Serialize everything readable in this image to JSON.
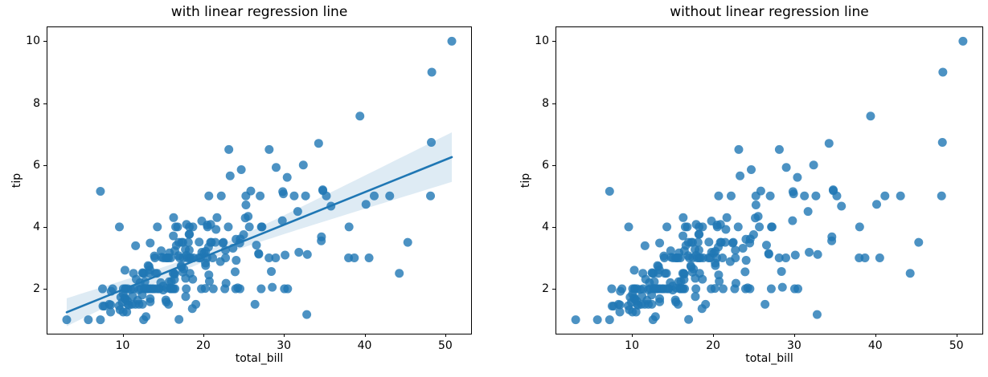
{
  "figure": {
    "background": "#ffffff"
  },
  "chart_data": {
    "type": "scatter",
    "x_field": "total_bill",
    "y_field": "tip",
    "xlim": [
      0.68,
      53.2
    ],
    "ylim": [
      0.55,
      10.45
    ],
    "x_ticks": [
      10,
      20,
      30,
      40,
      50
    ],
    "y_ticks": [
      2,
      4,
      6,
      8,
      10
    ],
    "grid": false,
    "legend": "none",
    "colors": {
      "point": "#1f77b4",
      "point_alpha": 0.8,
      "regression_line": "#1f77b4",
      "ci_band": "#1f77b4",
      "ci_band_alpha": 0.15,
      "axis": "#000000",
      "text": "#000000"
    },
    "subplots": [
      {
        "title": "with linear regression line",
        "xlabel": "total_bill",
        "ylabel": "tip",
        "regression_line": true,
        "regression": {
          "slope": 0.105,
          "intercept": 0.92,
          "x_start": 3.07,
          "x_end": 50.81,
          "ci_base": 0.026,
          "ci_quad": 0.00064,
          "x_mean": 19.79
        }
      },
      {
        "title": "without linear regression line",
        "xlabel": "total_bill",
        "ylabel": "tip",
        "regression_line": false
      }
    ],
    "points": [
      [
        16.99,
        1.01
      ],
      [
        10.34,
        1.66
      ],
      [
        21.01,
        3.5
      ],
      [
        23.68,
        3.31
      ],
      [
        24.59,
        3.61
      ],
      [
        25.29,
        4.71
      ],
      [
        8.77,
        2.0
      ],
      [
        26.88,
        3.12
      ],
      [
        15.04,
        1.96
      ],
      [
        14.78,
        3.23
      ],
      [
        10.27,
        1.71
      ],
      [
        35.26,
        5.0
      ],
      [
        15.42,
        1.57
      ],
      [
        18.43,
        3.0
      ],
      [
        14.83,
        3.02
      ],
      [
        21.58,
        3.92
      ],
      [
        10.33,
        1.67
      ],
      [
        16.29,
        3.71
      ],
      [
        16.97,
        3.5
      ],
      [
        20.65,
        3.35
      ],
      [
        17.92,
        4.08
      ],
      [
        20.29,
        2.75
      ],
      [
        15.77,
        2.23
      ],
      [
        39.42,
        7.58
      ],
      [
        19.82,
        3.18
      ],
      [
        17.81,
        2.34
      ],
      [
        13.37,
        2.0
      ],
      [
        12.69,
        2.0
      ],
      [
        21.7,
        4.3
      ],
      [
        19.65,
        3.0
      ],
      [
        9.55,
        1.45
      ],
      [
        18.35,
        2.5
      ],
      [
        15.06,
        3.0
      ],
      [
        20.69,
        2.45
      ],
      [
        17.78,
        3.27
      ],
      [
        24.06,
        3.6
      ],
      [
        16.31,
        2.0
      ],
      [
        16.93,
        3.07
      ],
      [
        18.69,
        2.31
      ],
      [
        31.27,
        5.0
      ],
      [
        16.04,
        2.24
      ],
      [
        17.46,
        2.54
      ],
      [
        13.94,
        3.06
      ],
      [
        9.68,
        1.32
      ],
      [
        30.4,
        5.6
      ],
      [
        18.29,
        3.0
      ],
      [
        22.23,
        5.0
      ],
      [
        32.4,
        6.0
      ],
      [
        28.55,
        2.05
      ],
      [
        18.04,
        3.0
      ],
      [
        12.54,
        2.5
      ],
      [
        10.29,
        2.6
      ],
      [
        34.81,
        5.2
      ],
      [
        9.94,
        1.56
      ],
      [
        25.56,
        4.34
      ],
      [
        19.49,
        3.51
      ],
      [
        38.01,
        3.0
      ],
      [
        26.41,
        1.5
      ],
      [
        11.24,
        1.76
      ],
      [
        48.27,
        6.73
      ],
      [
        20.29,
        3.21
      ],
      [
        13.81,
        2.0
      ],
      [
        11.02,
        1.98
      ],
      [
        18.29,
        3.76
      ],
      [
        17.59,
        2.64
      ],
      [
        20.08,
        3.15
      ],
      [
        16.45,
        2.47
      ],
      [
        3.07,
        1.0
      ],
      [
        20.23,
        2.01
      ],
      [
        15.01,
        2.09
      ],
      [
        12.02,
        1.97
      ],
      [
        17.07,
        3.0
      ],
      [
        26.86,
        3.14
      ],
      [
        25.28,
        5.0
      ],
      [
        14.73,
        2.2
      ],
      [
        10.51,
        1.25
      ],
      [
        17.92,
        3.08
      ],
      [
        27.2,
        4.0
      ],
      [
        22.76,
        3.0
      ],
      [
        17.29,
        2.71
      ],
      [
        19.44,
        3.0
      ],
      [
        16.66,
        3.4
      ],
      [
        10.07,
        1.83
      ],
      [
        32.68,
        5.0
      ],
      [
        15.98,
        2.03
      ],
      [
        34.83,
        5.17
      ],
      [
        13.03,
        2.0
      ],
      [
        18.28,
        4.0
      ],
      [
        24.71,
        5.85
      ],
      [
        21.16,
        3.0
      ],
      [
        28.97,
        3.0
      ],
      [
        22.49,
        3.5
      ],
      [
        5.75,
        1.0
      ],
      [
        16.32,
        4.3
      ],
      [
        22.75,
        3.25
      ],
      [
        40.17,
        4.73
      ],
      [
        27.28,
        4.0
      ],
      [
        12.03,
        1.5
      ],
      [
        21.24,
        2.0
      ],
      [
        12.46,
        1.5
      ],
      [
        11.35,
        2.5
      ],
      [
        15.38,
        3.0
      ],
      [
        44.3,
        2.5
      ],
      [
        22.42,
        3.48
      ],
      [
        20.92,
        4.08
      ],
      [
        15.36,
        1.64
      ],
      [
        20.49,
        4.06
      ],
      [
        25.21,
        4.29
      ],
      [
        18.24,
        3.76
      ],
      [
        14.31,
        4.0
      ],
      [
        14.0,
        3.0
      ],
      [
        7.25,
        1.0
      ],
      [
        38.07,
        4.0
      ],
      [
        23.95,
        2.55
      ],
      [
        25.71,
        4.0
      ],
      [
        17.31,
        3.5
      ],
      [
        29.93,
        5.07
      ],
      [
        10.65,
        1.5
      ],
      [
        12.43,
        1.8
      ],
      [
        24.08,
        2.92
      ],
      [
        11.69,
        2.31
      ],
      [
        13.42,
        1.68
      ],
      [
        14.26,
        2.5
      ],
      [
        15.95,
        2.0
      ],
      [
        12.48,
        2.52
      ],
      [
        29.8,
        4.2
      ],
      [
        8.52,
        1.48
      ],
      [
        14.52,
        2.0
      ],
      [
        11.38,
        2.0
      ],
      [
        22.82,
        2.18
      ],
      [
        19.08,
        1.5
      ],
      [
        20.27,
        2.83
      ],
      [
        11.17,
        1.5
      ],
      [
        12.26,
        2.0
      ],
      [
        18.26,
        3.25
      ],
      [
        8.51,
        1.25
      ],
      [
        10.33,
        2.0
      ],
      [
        14.15,
        2.0
      ],
      [
        16.0,
        2.0
      ],
      [
        13.16,
        2.75
      ],
      [
        17.47,
        3.5
      ],
      [
        34.3,
        6.7
      ],
      [
        41.19,
        5.0
      ],
      [
        27.05,
        5.0
      ],
      [
        16.43,
        2.3
      ],
      [
        8.35,
        1.5
      ],
      [
        18.64,
        1.36
      ],
      [
        11.87,
        1.63
      ],
      [
        9.78,
        1.73
      ],
      [
        7.51,
        2.0
      ],
      [
        14.07,
        2.5
      ],
      [
        13.13,
        2.0
      ],
      [
        17.26,
        2.74
      ],
      [
        24.55,
        2.0
      ],
      [
        19.77,
        2.0
      ],
      [
        29.85,
        5.14
      ],
      [
        48.17,
        5.0
      ],
      [
        25.0,
        3.75
      ],
      [
        13.39,
        2.61
      ],
      [
        16.49,
        2.0
      ],
      [
        21.5,
        3.5
      ],
      [
        12.66,
        2.5
      ],
      [
        16.21,
        2.0
      ],
      [
        13.81,
        2.0
      ],
      [
        17.51,
        3.0
      ],
      [
        24.52,
        3.48
      ],
      [
        20.76,
        2.24
      ],
      [
        31.71,
        4.5
      ],
      [
        10.59,
        1.61
      ],
      [
        10.63,
        2.0
      ],
      [
        50.81,
        10.0
      ],
      [
        15.81,
        3.16
      ],
      [
        7.25,
        5.15
      ],
      [
        31.85,
        3.18
      ],
      [
        16.82,
        4.0
      ],
      [
        32.9,
        3.11
      ],
      [
        17.89,
        2.0
      ],
      [
        14.48,
        2.0
      ],
      [
        9.6,
        4.0
      ],
      [
        34.63,
        3.55
      ],
      [
        34.65,
        3.68
      ],
      [
        23.33,
        5.65
      ],
      [
        45.35,
        3.5
      ],
      [
        23.17,
        6.5
      ],
      [
        40.55,
        3.0
      ],
      [
        20.69,
        5.0
      ],
      [
        20.9,
        3.5
      ],
      [
        30.46,
        2.0
      ],
      [
        18.15,
        3.5
      ],
      [
        23.1,
        4.0
      ],
      [
        15.69,
        1.5
      ],
      [
        19.81,
        4.19
      ],
      [
        28.44,
        2.56
      ],
      [
        15.48,
        2.02
      ],
      [
        16.58,
        4.0
      ],
      [
        7.56,
        1.44
      ],
      [
        10.34,
        2.0
      ],
      [
        43.11,
        5.0
      ],
      [
        13.0,
        2.0
      ],
      [
        13.51,
        2.0
      ],
      [
        18.71,
        4.0
      ],
      [
        12.74,
        2.01
      ],
      [
        13.0,
        2.0
      ],
      [
        16.4,
        2.5
      ],
      [
        20.53,
        4.0
      ],
      [
        16.47,
        3.23
      ],
      [
        26.59,
        3.41
      ],
      [
        38.73,
        3.0
      ],
      [
        24.27,
        2.03
      ],
      [
        12.76,
        2.23
      ],
      [
        30.06,
        2.0
      ],
      [
        25.89,
        5.16
      ],
      [
        48.33,
        9.0
      ],
      [
        13.27,
        2.5
      ],
      [
        28.17,
        6.5
      ],
      [
        12.9,
        1.1
      ],
      [
        28.15,
        3.0
      ],
      [
        11.59,
        1.5
      ],
      [
        7.74,
        1.44
      ],
      [
        30.14,
        3.09
      ],
      [
        12.16,
        2.2
      ],
      [
        13.42,
        3.48
      ],
      [
        8.58,
        1.92
      ],
      [
        15.98,
        3.0
      ],
      [
        13.42,
        1.58
      ],
      [
        16.27,
        2.5
      ],
      [
        10.09,
        2.0
      ],
      [
        20.45,
        3.0
      ],
      [
        13.28,
        2.72
      ],
      [
        22.12,
        2.88
      ],
      [
        24.01,
        2.0
      ],
      [
        15.69,
        3.0
      ],
      [
        11.61,
        3.39
      ],
      [
        10.77,
        1.47
      ],
      [
        15.53,
        3.0
      ],
      [
        10.07,
        1.25
      ],
      [
        12.6,
        1.0
      ],
      [
        32.83,
        1.17
      ],
      [
        35.83,
        4.67
      ],
      [
        29.03,
        5.92
      ],
      [
        27.18,
        2.0
      ],
      [
        22.67,
        2.0
      ],
      [
        17.82,
        1.75
      ],
      [
        18.78,
        3.0
      ]
    ]
  }
}
